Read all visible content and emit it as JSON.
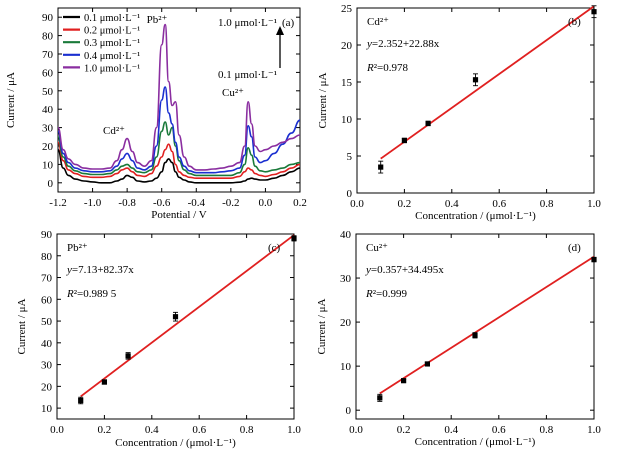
{
  "figure_title": "",
  "colors": {
    "fit_line": "#e02020",
    "points": "#000000",
    "series": [
      "#000000",
      "#e02020",
      "#1a7a3a",
      "#1a2fd0",
      "#8a2ea0"
    ]
  },
  "chart_data": [
    {
      "id": "a",
      "type": "line",
      "panel_label": "(a)",
      "xlabel": "Potential / V",
      "ylabel": "Current / μA",
      "xlim": [
        -1.2,
        0.2
      ],
      "ylim": [
        -5,
        95
      ],
      "xticks": [
        -1.2,
        -1.0,
        -0.8,
        -0.6,
        -0.4,
        -0.2,
        0.0,
        0.2
      ],
      "xtick_labels": [
        "-1.2",
        "-1.0",
        "-0.8",
        "-0.6",
        "-0.4",
        "-0.2",
        "0.0",
        "0.2"
      ],
      "yticks": [
        0,
        10,
        20,
        30,
        40,
        50,
        60,
        70,
        80,
        90
      ],
      "ytick_labels": [
        "0",
        "10",
        "20",
        "30",
        "40",
        "50",
        "60",
        "70",
        "80",
        "90"
      ],
      "grid": false,
      "legend_position": "top-left",
      "series": [
        {
          "name": "0.1 μmol·L⁻¹",
          "color": "#000000",
          "x": [
            -1.2,
            -1.17,
            -1.14,
            -1.1,
            -1.05,
            -1.0,
            -0.95,
            -0.9,
            -0.86,
            -0.83,
            -0.8,
            -0.77,
            -0.74,
            -0.7,
            -0.66,
            -0.63,
            -0.6,
            -0.58,
            -0.56,
            -0.54,
            -0.52,
            -0.5,
            -0.47,
            -0.44,
            -0.4,
            -0.35,
            -0.3,
            -0.25,
            -0.2,
            -0.15,
            -0.12,
            -0.1,
            -0.08,
            -0.06,
            -0.03,
            0.0,
            0.05,
            0.1,
            0.15,
            0.2
          ],
          "y": [
            18,
            8,
            4,
            2,
            1,
            0.5,
            0,
            0,
            1,
            2,
            4,
            3,
            1,
            0.5,
            1,
            2.5,
            6,
            11,
            13,
            11,
            6,
            3,
            1.5,
            0.5,
            0,
            0,
            0,
            0,
            0,
            0.3,
            1,
            2,
            2.5,
            2,
            1.5,
            1.5,
            2.5,
            4,
            6,
            8
          ]
        },
        {
          "name": "0.2 μmol·L⁻¹",
          "color": "#e02020",
          "x": [
            -1.2,
            -1.17,
            -1.14,
            -1.1,
            -1.05,
            -1.0,
            -0.95,
            -0.9,
            -0.86,
            -0.83,
            -0.8,
            -0.77,
            -0.74,
            -0.7,
            -0.66,
            -0.63,
            -0.6,
            -0.58,
            -0.56,
            -0.54,
            -0.52,
            -0.5,
            -0.47,
            -0.44,
            -0.4,
            -0.35,
            -0.3,
            -0.25,
            -0.2,
            -0.15,
            -0.12,
            -0.1,
            -0.08,
            -0.06,
            -0.03,
            0.0,
            0.05,
            0.1,
            0.15,
            0.2
          ],
          "y": [
            22,
            12,
            7,
            5,
            3.5,
            3,
            3,
            3.5,
            5,
            7,
            8,
            6,
            4,
            3.5,
            5,
            9,
            14,
            18,
            21,
            17,
            10,
            6,
            4,
            3,
            2.5,
            2.5,
            2.5,
            2.5,
            2.5,
            3.5,
            6,
            8,
            7,
            5,
            4,
            3.5,
            4.5,
            6,
            8,
            10
          ]
        },
        {
          "name": "0.3 μmol·L⁻¹",
          "color": "#1a7a3a",
          "x": [
            -1.2,
            -1.17,
            -1.14,
            -1.1,
            -1.05,
            -1.0,
            -0.95,
            -0.9,
            -0.86,
            -0.83,
            -0.8,
            -0.77,
            -0.74,
            -0.7,
            -0.66,
            -0.63,
            -0.6,
            -0.58,
            -0.56,
            -0.54,
            -0.52,
            -0.5,
            -0.47,
            -0.44,
            -0.4,
            -0.35,
            -0.3,
            -0.25,
            -0.2,
            -0.15,
            -0.12,
            -0.1,
            -0.08,
            -0.06,
            -0.03,
            0.0,
            0.05,
            0.1,
            0.15,
            0.2
          ],
          "y": [
            25,
            14,
            9,
            6.5,
            5,
            4.5,
            4.5,
            5,
            7,
            9,
            10,
            8,
            6,
            5.5,
            7,
            14,
            28,
            33,
            26,
            30,
            20,
            12,
            7,
            5,
            4,
            4,
            4,
            4,
            4,
            5.5,
            10,
            19,
            15,
            9,
            6.5,
            6,
            7,
            8,
            10,
            11
          ]
        },
        {
          "name": "0.4 μmol·L⁻¹",
          "color": "#1a2fd0",
          "x": [
            -1.2,
            -1.17,
            -1.14,
            -1.1,
            -1.05,
            -1.0,
            -0.95,
            -0.9,
            -0.86,
            -0.83,
            -0.8,
            -0.77,
            -0.74,
            -0.7,
            -0.66,
            -0.63,
            -0.6,
            -0.58,
            -0.56,
            -0.54,
            -0.52,
            -0.5,
            -0.47,
            -0.44,
            -0.4,
            -0.35,
            -0.3,
            -0.25,
            -0.2,
            -0.15,
            -0.12,
            -0.1,
            -0.08,
            -0.06,
            -0.03,
            0.0,
            0.05,
            0.1,
            0.15,
            0.2
          ],
          "y": [
            28,
            16,
            11,
            8,
            6.5,
            6,
            6,
            6.5,
            9,
            13,
            16,
            12,
            8,
            7,
            9,
            20,
            45,
            52,
            38,
            32,
            22,
            14,
            9,
            6.5,
            5.5,
            5.5,
            5.5,
            6,
            6.5,
            8,
            15,
            31,
            25,
            14,
            11,
            12,
            16,
            21,
            27,
            34
          ]
        },
        {
          "name": "1.0 μmol·L⁻¹",
          "color": "#8a2ea0",
          "x": [
            -1.2,
            -1.17,
            -1.14,
            -1.1,
            -1.05,
            -1.0,
            -0.95,
            -0.9,
            -0.86,
            -0.83,
            -0.8,
            -0.77,
            -0.74,
            -0.7,
            -0.66,
            -0.63,
            -0.6,
            -0.58,
            -0.56,
            -0.54,
            -0.52,
            -0.5,
            -0.47,
            -0.44,
            -0.4,
            -0.35,
            -0.3,
            -0.25,
            -0.2,
            -0.15,
            -0.12,
            -0.1,
            -0.08,
            -0.06,
            -0.03,
            0.0,
            0.05,
            0.1,
            0.15,
            0.2
          ],
          "y": [
            30,
            18,
            13,
            10,
            8,
            7.5,
            7.5,
            8,
            12,
            18,
            24,
            17,
            11,
            9,
            12,
            30,
            75,
            86,
            55,
            42,
            44,
            26,
            14,
            9,
            7,
            7,
            7.5,
            8,
            9,
            11,
            20,
            44,
            32,
            20,
            17,
            18,
            20,
            22,
            24,
            26
          ]
        }
      ],
      "annotations": [
        {
          "text": "Pb²⁺",
          "x": -0.6,
          "y": 88
        },
        {
          "text": "Cd²⁺",
          "x": -0.86,
          "y": 29
        },
        {
          "text": "Cu²⁺",
          "x": -0.13,
          "y": 50
        },
        {
          "text": "1.0 μmol·L⁻¹",
          "x": -0.2,
          "y": 89
        },
        {
          "text": "0.1 μmol·L⁻¹",
          "x": -0.2,
          "y": 60
        }
      ]
    },
    {
      "id": "b",
      "type": "scatter",
      "panel_label": "(b)",
      "ion_label": "Cd²⁺",
      "equation": "y=2.352+22.88x",
      "r2": "R²=0.978",
      "xlabel": "Concentration / (μmol·L⁻¹)",
      "ylabel": "Current / μA",
      "xlim": [
        0.0,
        1.0
      ],
      "ylim": [
        0,
        25
      ],
      "xticks": [
        0.0,
        0.2,
        0.4,
        0.6,
        0.8,
        1.0
      ],
      "xtick_labels": [
        "0.0",
        "0.2",
        "0.4",
        "0.6",
        "0.8",
        "1.0"
      ],
      "yticks": [
        0,
        5,
        10,
        15,
        20,
        25
      ],
      "ytick_labels": [
        "0",
        "5",
        "10",
        "15",
        "20",
        "25"
      ],
      "grid": false,
      "x": [
        0.1,
        0.2,
        0.3,
        0.5,
        1.0
      ],
      "y": [
        3.5,
        7.1,
        9.4,
        15.3,
        24.5
      ],
      "yerr": [
        0.8,
        0.3,
        0.3,
        0.8,
        0.8
      ],
      "fit": {
        "intercept": 2.352,
        "slope": 22.88,
        "x_range": [
          0.1,
          1.0
        ]
      }
    },
    {
      "id": "c",
      "type": "scatter",
      "panel_label": "(c)",
      "ion_label": "Pb²⁺",
      "equation": "y=7.13+82.37x",
      "r2": "R²=0.989 5",
      "xlabel": "Concentration / (μmol·L⁻¹)",
      "ylabel": "Current / μA",
      "xlim": [
        0.0,
        1.0
      ],
      "ylim": [
        5,
        90
      ],
      "xticks": [
        0.0,
        0.2,
        0.4,
        0.6,
        0.8,
        1.0
      ],
      "xtick_labels": [
        "0.0",
        "0.2",
        "0.4",
        "0.6",
        "0.8",
        "1.0"
      ],
      "yticks": [
        10,
        20,
        30,
        40,
        50,
        60,
        70,
        80,
        90
      ],
      "ytick_labels": [
        "10",
        "20",
        "30",
        "40",
        "50",
        "60",
        "70",
        "80",
        "90"
      ],
      "grid": false,
      "x": [
        0.1,
        0.2,
        0.3,
        0.5,
        1.0
      ],
      "y": [
        13.5,
        22,
        34,
        52,
        88
      ],
      "yerr": [
        1.5,
        1.0,
        1.5,
        2.0,
        1.2
      ],
      "fit": {
        "intercept": 7.13,
        "slope": 82.37,
        "x_range": [
          0.1,
          1.0
        ]
      }
    },
    {
      "id": "d",
      "type": "scatter",
      "panel_label": "(d)",
      "ion_label": "Cu²⁺",
      "equation": "y=0.357+34.495x",
      "r2": "R²=0.999",
      "xlabel": "Concentration / (μmol·L⁻¹)",
      "ylabel": "Current / μA",
      "xlim": [
        0.0,
        1.0
      ],
      "ylim": [
        -2,
        40
      ],
      "xticks": [
        0.0,
        0.2,
        0.4,
        0.6,
        0.8,
        1.0
      ],
      "xtick_labels": [
        "0.0",
        "0.2",
        "0.4",
        "0.6",
        "0.8",
        "1.0"
      ],
      "yticks": [
        0,
        10,
        20,
        30,
        40
      ],
      "ytick_labels": [
        "0",
        "10",
        "20",
        "30",
        "40"
      ],
      "grid": false,
      "x": [
        0.1,
        0.2,
        0.3,
        0.5,
        1.0
      ],
      "y": [
        2.8,
        6.7,
        10.5,
        17.0,
        34.2
      ],
      "yerr": [
        0.8,
        0.3,
        0.4,
        0.6,
        0.5
      ],
      "fit": {
        "intercept": 0.357,
        "slope": 34.495,
        "x_range": [
          0.1,
          1.0
        ]
      }
    }
  ]
}
